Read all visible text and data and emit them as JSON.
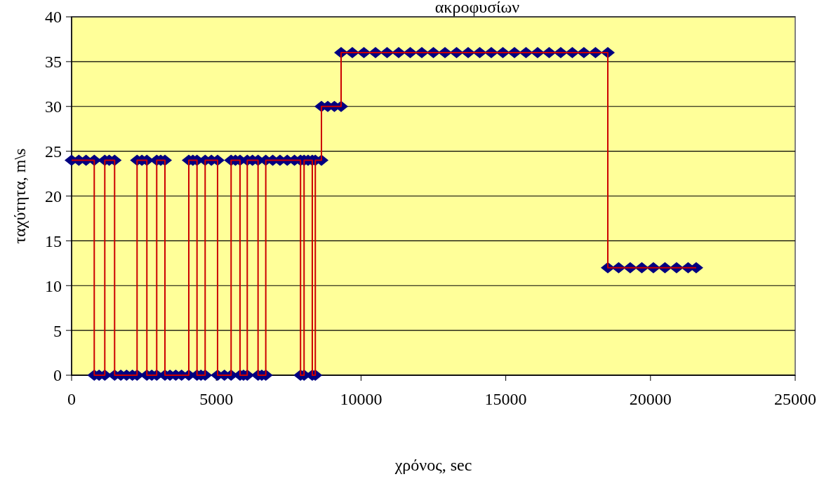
{
  "chart_data": {
    "type": "line",
    "title": "ακροφυσίων",
    "xlabel": "χρόνος, sec",
    "ylabel": "ταχύτητα, m\\s",
    "xlim": [
      0,
      25000
    ],
    "xticks": [
      0,
      5000,
      10000,
      15000,
      20000,
      25000
    ],
    "ylim": [
      0,
      40
    ],
    "yticks": [
      0,
      5,
      10,
      15,
      20,
      25,
      30,
      35,
      40
    ],
    "grid": "y",
    "marker": "diamond",
    "line_style": "solid",
    "series": [
      {
        "color": "#cc0000",
        "x": [
          0,
          250,
          500,
          783,
          783,
          950,
          1147,
          1147,
          1300,
          1486,
          1486,
          1700,
          1900,
          2100,
          2262,
          2262,
          2430,
          2601,
          2601,
          2770,
          2941,
          2941,
          3080,
          3225,
          3225,
          3400,
          3600,
          3800,
          4049,
          4049,
          4190,
          4333,
          4333,
          4470,
          4614,
          4614,
          4830,
          5043,
          5043,
          5280,
          5511,
          5511,
          5660,
          5819,
          5819,
          5940,
          6069,
          6069,
          6250,
          6442,
          6442,
          6570,
          6709,
          6709,
          6950,
          7200,
          7450,
          7700,
          7910,
          7910,
          8032,
          8032,
          8170,
          8316,
          8316,
          8420,
          8420,
          8632,
          8632,
          8850,
          9080,
          9311,
          9311,
          9700,
          10100,
          10500,
          10900,
          11300,
          11700,
          12100,
          12500,
          12900,
          13300,
          13700,
          14100,
          14500,
          14900,
          15300,
          15700,
          16100,
          16500,
          16900,
          17300,
          17700,
          18100,
          18526,
          18526,
          18900,
          19300,
          19700,
          20100,
          20500,
          20900,
          21300,
          21580
        ],
        "values": [
          24,
          24,
          24,
          24,
          0,
          0,
          0,
          24,
          24,
          24,
          0,
          0,
          0,
          0,
          0,
          24,
          24,
          24,
          0,
          0,
          0,
          24,
          24,
          24,
          0,
          0,
          0,
          0,
          0,
          24,
          24,
          24,
          0,
          0,
          0,
          24,
          24,
          24,
          0,
          0,
          0,
          24,
          24,
          24,
          0,
          0,
          0,
          24,
          24,
          24,
          0,
          0,
          0,
          24,
          24,
          24,
          24,
          24,
          24,
          0,
          0,
          24,
          24,
          24,
          0,
          0,
          24,
          24,
          30,
          30,
          30,
          30,
          36,
          36,
          36,
          36,
          36,
          36,
          36,
          36,
          36,
          36,
          36,
          36,
          36,
          36,
          36,
          36,
          36,
          36,
          36,
          36,
          36,
          36,
          36,
          36,
          12,
          12,
          12,
          12,
          12,
          12,
          12,
          12,
          12
        ]
      }
    ]
  }
}
